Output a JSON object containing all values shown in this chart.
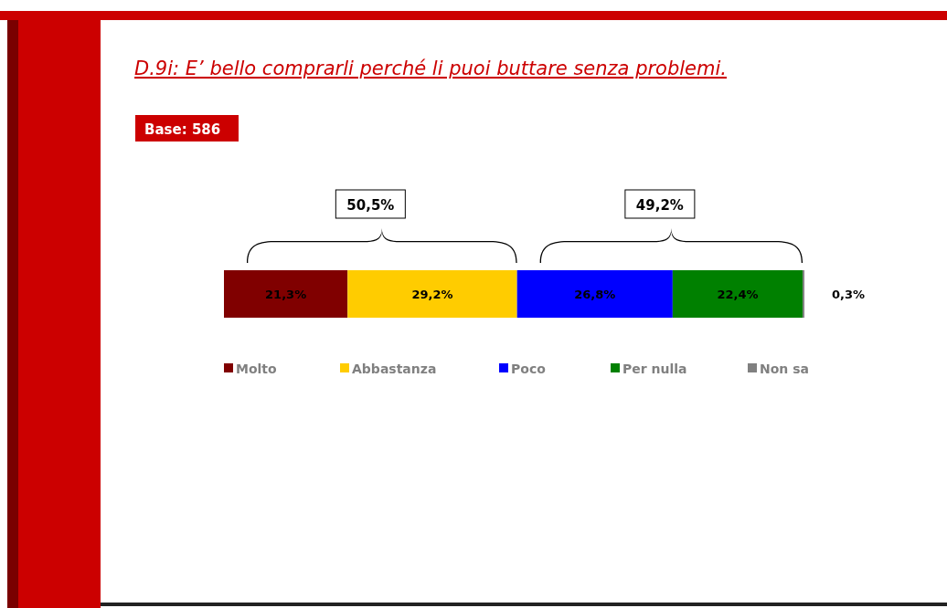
{
  "chart_data": {
    "type": "bar",
    "orientation": "horizontal",
    "stacked": true,
    "title": "D.9i: E’ bello comprarli perché li puoi buttare senza problemi.",
    "annotations": [
      "Base: 586",
      "50,5%",
      "49,2%"
    ],
    "categories": [
      null
    ],
    "legend": "bottom",
    "series": [
      {
        "name": "Molto",
        "color": "#800000",
        "values": [
          21.3
        ],
        "value_labels": [
          "21,3%"
        ]
      },
      {
        "name": "Abbastanza",
        "color": "#ffcc00",
        "values": [
          29.2
        ],
        "value_labels": [
          "29,2%"
        ]
      },
      {
        "name": "Poco",
        "color": "#0000ff",
        "values": [
          26.8
        ],
        "value_labels": [
          "26,8%"
        ]
      },
      {
        "name": "Per nulla",
        "color": "#008000",
        "values": [
          22.4
        ],
        "value_labels": [
          "22,4%"
        ]
      },
      {
        "name": "Non sa",
        "color": "#808080",
        "values": [
          0.3
        ],
        "value_labels": [
          "0,3%"
        ]
      }
    ]
  }
}
